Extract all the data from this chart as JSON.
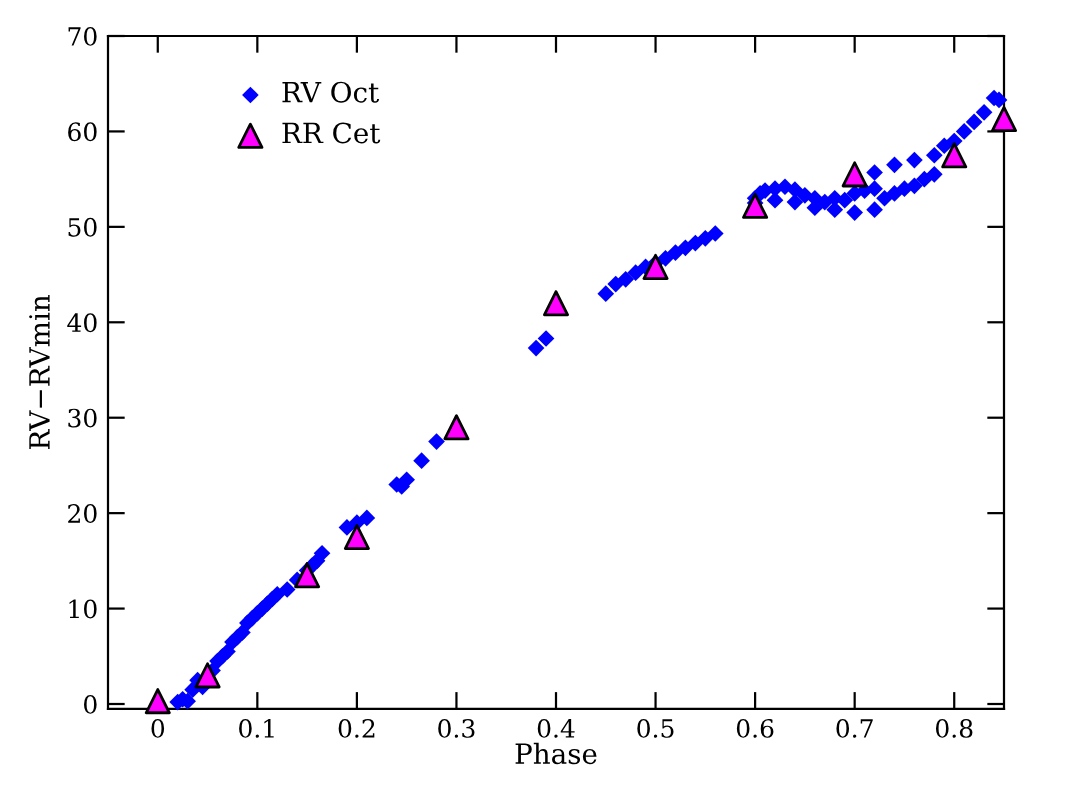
{
  "chart_data": {
    "type": "scatter",
    "xlabel": "Phase",
    "ylabel": "RV−RVmin",
    "xlim": [
      -0.05,
      0.85
    ],
    "ylim": [
      -0.5,
      70
    ],
    "xticks": [
      0,
      0.1,
      0.2,
      0.3,
      0.4,
      0.5,
      0.6,
      0.7,
      0.8
    ],
    "yticks": [
      0,
      10,
      20,
      30,
      40,
      50,
      60,
      70
    ],
    "grid": false,
    "legend": "top left",
    "series": [
      {
        "name": "RV Oct",
        "color": "#0000ff",
        "marker": "diamond",
        "x": [
          0.02,
          0.025,
          0.03,
          0.035,
          0.04,
          0.045,
          0.055,
          0.06,
          0.065,
          0.07,
          0.075,
          0.08,
          0.085,
          0.09,
          0.095,
          0.1,
          0.105,
          0.11,
          0.115,
          0.12,
          0.13,
          0.14,
          0.15,
          0.155,
          0.16,
          0.165,
          0.19,
          0.2,
          0.21,
          0.24,
          0.245,
          0.25,
          0.265,
          0.28,
          0.38,
          0.39,
          0.45,
          0.46,
          0.47,
          0.48,
          0.49,
          0.5,
          0.51,
          0.52,
          0.53,
          0.54,
          0.55,
          0.56,
          0.6,
          0.605,
          0.61,
          0.62,
          0.63,
          0.64,
          0.65,
          0.66,
          0.67,
          0.68,
          0.69,
          0.7,
          0.71,
          0.72,
          0.6,
          0.62,
          0.64,
          0.66,
          0.68,
          0.7,
          0.72,
          0.73,
          0.74,
          0.75,
          0.76,
          0.77,
          0.78,
          0.72,
          0.74,
          0.76,
          0.78,
          0.79,
          0.8,
          0.81,
          0.82,
          0.83,
          0.84,
          0.845
        ],
        "values": [
          0.2,
          0.5,
          0.3,
          1.5,
          2.5,
          1.8,
          3.5,
          4.5,
          5,
          5.5,
          6.5,
          7,
          7.5,
          8.5,
          9,
          9.5,
          10,
          10.5,
          11,
          11.5,
          12,
          13,
          14,
          14.5,
          15,
          15.8,
          18.5,
          19,
          19.5,
          23,
          22.8,
          23.5,
          25.5,
          27.5,
          37.3,
          38.3,
          43,
          44,
          44.5,
          45.2,
          45.8,
          46.2,
          46.7,
          47.3,
          47.8,
          48.3,
          48.8,
          49.3,
          53,
          53.5,
          53.8,
          54,
          54.2,
          53.9,
          53.3,
          53,
          52.6,
          53,
          52.8,
          53.5,
          53.8,
          54,
          52.5,
          52.8,
          52.6,
          52,
          51.8,
          51.5,
          51.8,
          53,
          53.5,
          54,
          54.3,
          55,
          55.5,
          55.7,
          56.5,
          57,
          57.5,
          58.5,
          59,
          60,
          61,
          62,
          63.5,
          63.3
        ]
      },
      {
        "name": "RR Cet",
        "color": "#ff00ff",
        "marker": "triangle",
        "x": [
          0,
          0.05,
          0.15,
          0.2,
          0.3,
          0.4,
          0.5,
          0.6,
          0.7,
          0.8,
          0.85
        ],
        "values": [
          0.3,
          3,
          13.5,
          17.5,
          29,
          42,
          45.8,
          52.2,
          55.5,
          57.5,
          61.3
        ]
      }
    ]
  }
}
